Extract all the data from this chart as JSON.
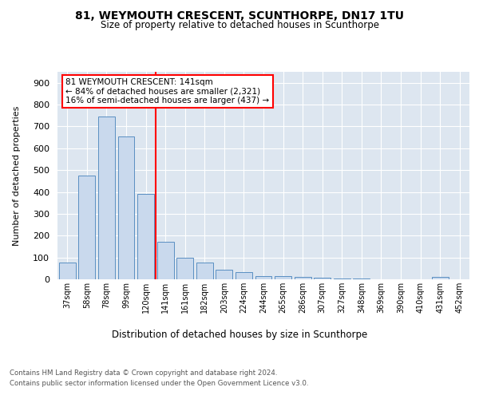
{
  "title": "81, WEYMOUTH CRESCENT, SCUNTHORPE, DN17 1TU",
  "subtitle": "Size of property relative to detached houses in Scunthorpe",
  "xlabel": "Distribution of detached houses by size in Scunthorpe",
  "ylabel": "Number of detached properties",
  "categories": [
    "37sqm",
    "58sqm",
    "78sqm",
    "99sqm",
    "120sqm",
    "141sqm",
    "161sqm",
    "182sqm",
    "203sqm",
    "224sqm",
    "244sqm",
    "265sqm",
    "286sqm",
    "307sqm",
    "327sqm",
    "348sqm",
    "369sqm",
    "390sqm",
    "410sqm",
    "431sqm",
    "452sqm"
  ],
  "values": [
    75,
    475,
    745,
    655,
    390,
    170,
    98,
    75,
    45,
    32,
    13,
    13,
    10,
    7,
    5,
    2,
    1,
    0,
    0,
    10,
    0
  ],
  "bar_color": "#c9d9ed",
  "bar_edge_color": "#5a8fc2",
  "red_line_index": 5,
  "annotation_line1": "81 WEYMOUTH CRESCENT: 141sqm",
  "annotation_line2": "← 84% of detached houses are smaller (2,321)",
  "annotation_line3": "16% of semi-detached houses are larger (437) →",
  "ylim": [
    0,
    950
  ],
  "yticks": [
    0,
    100,
    200,
    300,
    400,
    500,
    600,
    700,
    800,
    900
  ],
  "footer_line1": "Contains HM Land Registry data © Crown copyright and database right 2024.",
  "footer_line2": "Contains public sector information licensed under the Open Government Licence v3.0.",
  "plot_bg_color": "#dde6f0"
}
